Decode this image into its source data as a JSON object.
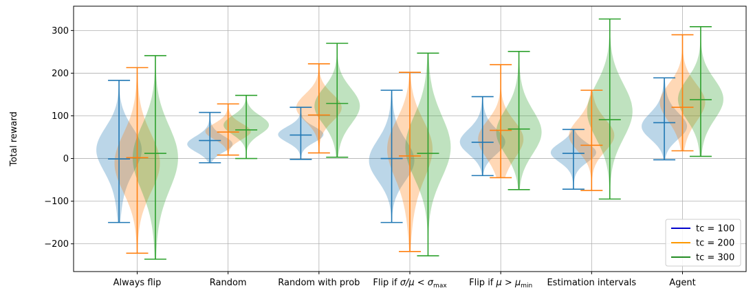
{
  "chart_data": {
    "type": "violin",
    "title": "",
    "xlabel": "",
    "ylabel": "Total reward",
    "ylim": [
      -265,
      357
    ],
    "yticks": [
      -200,
      -100,
      0,
      100,
      200,
      300
    ],
    "ytick_labels": [
      "−200",
      "−100",
      "0",
      "100",
      "200",
      "300"
    ],
    "grid": true,
    "legend_position": "lower-right",
    "categories": [
      "Always flip",
      "Random",
      "Random with prob",
      "Flip if σ/μ < σmax",
      "Flip if μ > μmin",
      "Estimation intervals",
      "Agent"
    ],
    "category_labels": [
      {
        "pre": "Always flip"
      },
      {
        "pre": "Random"
      },
      {
        "pre": "Random with prob"
      },
      {
        "pre": "Flip if ",
        "math": "σ/μ < σ",
        "sub": "max"
      },
      {
        "pre": "Flip if ",
        "math": "μ > μ",
        "sub": "min"
      },
      {
        "pre": "Estimation intervals"
      },
      {
        "pre": "Agent"
      }
    ],
    "series": [
      {
        "name": "tc = 100",
        "legend_color": "#0000cc",
        "color": "#1f77b4",
        "stats": [
          {
            "min": -150,
            "mean": -1,
            "max": 183
          },
          {
            "min": -10,
            "mean": 42,
            "max": 108
          },
          {
            "min": -2,
            "mean": 55,
            "max": 120
          },
          {
            "min": -150,
            "mean": 0,
            "max": 160
          },
          {
            "min": -40,
            "mean": 38,
            "max": 145
          },
          {
            "min": -72,
            "mean": 12,
            "max": 68
          },
          {
            "min": -3,
            "mean": 84,
            "max": 189
          }
        ]
      },
      {
        "name": "tc = 200",
        "legend_color": "#ff9900",
        "color": "#ff7f0e",
        "stats": [
          {
            "min": -222,
            "mean": 2,
            "max": 213
          },
          {
            "min": 8,
            "mean": 62,
            "max": 128
          },
          {
            "min": 13,
            "mean": 102,
            "max": 222
          },
          {
            "min": -218,
            "mean": 6,
            "max": 202
          },
          {
            "min": -45,
            "mean": 66,
            "max": 220
          },
          {
            "min": -75,
            "mean": 31,
            "max": 160
          },
          {
            "min": 18,
            "mean": 120,
            "max": 290
          }
        ]
      },
      {
        "name": "tc = 300",
        "legend_color": "#228b22",
        "color": "#2ca02c",
        "stats": [
          {
            "min": -236,
            "mean": 12,
            "max": 241
          },
          {
            "min": 0,
            "mean": 67,
            "max": 148
          },
          {
            "min": 3,
            "mean": 129,
            "max": 270
          },
          {
            "min": -228,
            "mean": 12,
            "max": 247
          },
          {
            "min": -73,
            "mean": 69,
            "max": 251
          },
          {
            "min": -95,
            "mean": 91,
            "max": 327
          },
          {
            "min": 5,
            "mean": 138,
            "max": 309
          }
        ]
      }
    ]
  }
}
